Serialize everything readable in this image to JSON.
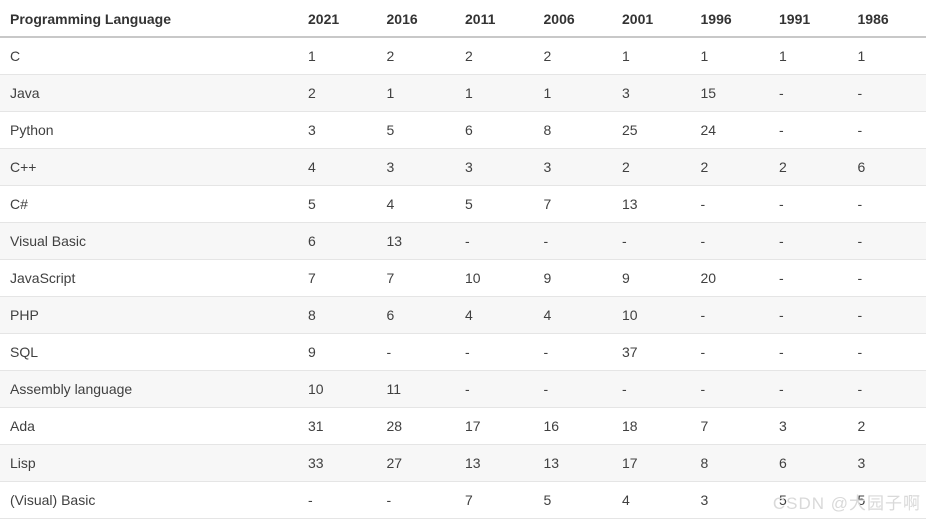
{
  "chart_data": {
    "type": "table",
    "columns": [
      "Programming Language",
      "2021",
      "2016",
      "2011",
      "2006",
      "2001",
      "1996",
      "1991",
      "1986"
    ],
    "rows": [
      {
        "language": "C",
        "values": [
          "1",
          "2",
          "2",
          "2",
          "1",
          "1",
          "1",
          "1"
        ]
      },
      {
        "language": "Java",
        "values": [
          "2",
          "1",
          "1",
          "1",
          "3",
          "15",
          "-",
          "-"
        ]
      },
      {
        "language": "Python",
        "values": [
          "3",
          "5",
          "6",
          "8",
          "25",
          "24",
          "-",
          "-"
        ]
      },
      {
        "language": "C++",
        "values": [
          "4",
          "3",
          "3",
          "3",
          "2",
          "2",
          "2",
          "6"
        ]
      },
      {
        "language": "C#",
        "values": [
          "5",
          "4",
          "5",
          "7",
          "13",
          "-",
          "-",
          "-"
        ]
      },
      {
        "language": "Visual Basic",
        "values": [
          "6",
          "13",
          "-",
          "-",
          "-",
          "-",
          "-",
          "-"
        ]
      },
      {
        "language": "JavaScript",
        "values": [
          "7",
          "7",
          "10",
          "9",
          "9",
          "20",
          "-",
          "-"
        ]
      },
      {
        "language": "PHP",
        "values": [
          "8",
          "6",
          "4",
          "4",
          "10",
          "-",
          "-",
          "-"
        ]
      },
      {
        "language": "SQL",
        "values": [
          "9",
          "-",
          "-",
          "-",
          "37",
          "-",
          "-",
          "-"
        ]
      },
      {
        "language": "Assembly language",
        "values": [
          "10",
          "11",
          "-",
          "-",
          "-",
          "-",
          "-",
          "-"
        ]
      },
      {
        "language": "Ada",
        "values": [
          "31",
          "28",
          "17",
          "16",
          "18",
          "7",
          "3",
          "2"
        ]
      },
      {
        "language": "Lisp",
        "values": [
          "33",
          "27",
          "13",
          "13",
          "17",
          "8",
          "6",
          "3"
        ]
      },
      {
        "language": "(Visual) Basic",
        "values": [
          "-",
          "-",
          "7",
          "5",
          "4",
          "3",
          "5",
          "5"
        ]
      }
    ],
    "legend": null,
    "grid": "horizontal-row-separators"
  },
  "watermark": {
    "text": "CSDN @大园子啊"
  },
  "colors": {
    "header_text": "#333333",
    "cell_text": "#404040",
    "header_border": "#c8c8c8",
    "row_border": "#e5e5e5",
    "stripe": "#f7f7f7",
    "watermark": "#d9d9d9"
  }
}
